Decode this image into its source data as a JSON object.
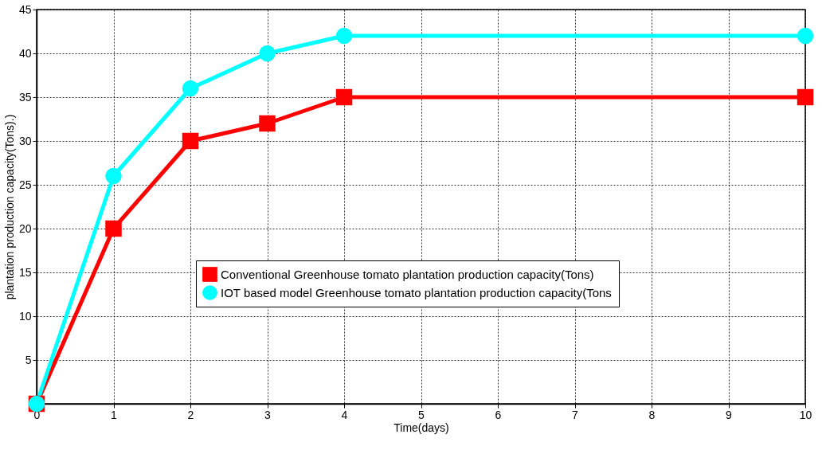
{
  "chart_data": {
    "type": "line",
    "xlabel": "Time(days)",
    "ylabel": "plantation production capacity(Tons).)",
    "xlim": [
      0,
      10
    ],
    "xticks": [
      0,
      1,
      2,
      3,
      4,
      5,
      6,
      7,
      8,
      9,
      10
    ],
    "ylim": [
      0,
      45
    ],
    "yticks": [
      {
        "value": 0,
        "label": null
      },
      5,
      10,
      15,
      20,
      25,
      30,
      35,
      40,
      45
    ],
    "grid": true,
    "legend": "center",
    "line_style": "solid",
    "series": [
      {
        "name": "Conventional Greenhouse tomato plantation production capacity(Tons)",
        "color": "#ff0000",
        "marker": "square",
        "x": [
          0,
          1,
          2,
          3,
          4,
          10
        ],
        "values": [
          0,
          20,
          30,
          32,
          35,
          35
        ]
      },
      {
        "name": "IOT based model Greenhouse tomato plantation production capacity(Tons",
        "color": "#00ffff",
        "marker": "circle",
        "x": [
          0,
          1,
          2,
          3,
          4,
          10
        ],
        "values": [
          0,
          26,
          36,
          40,
          42,
          42
        ]
      }
    ]
  }
}
